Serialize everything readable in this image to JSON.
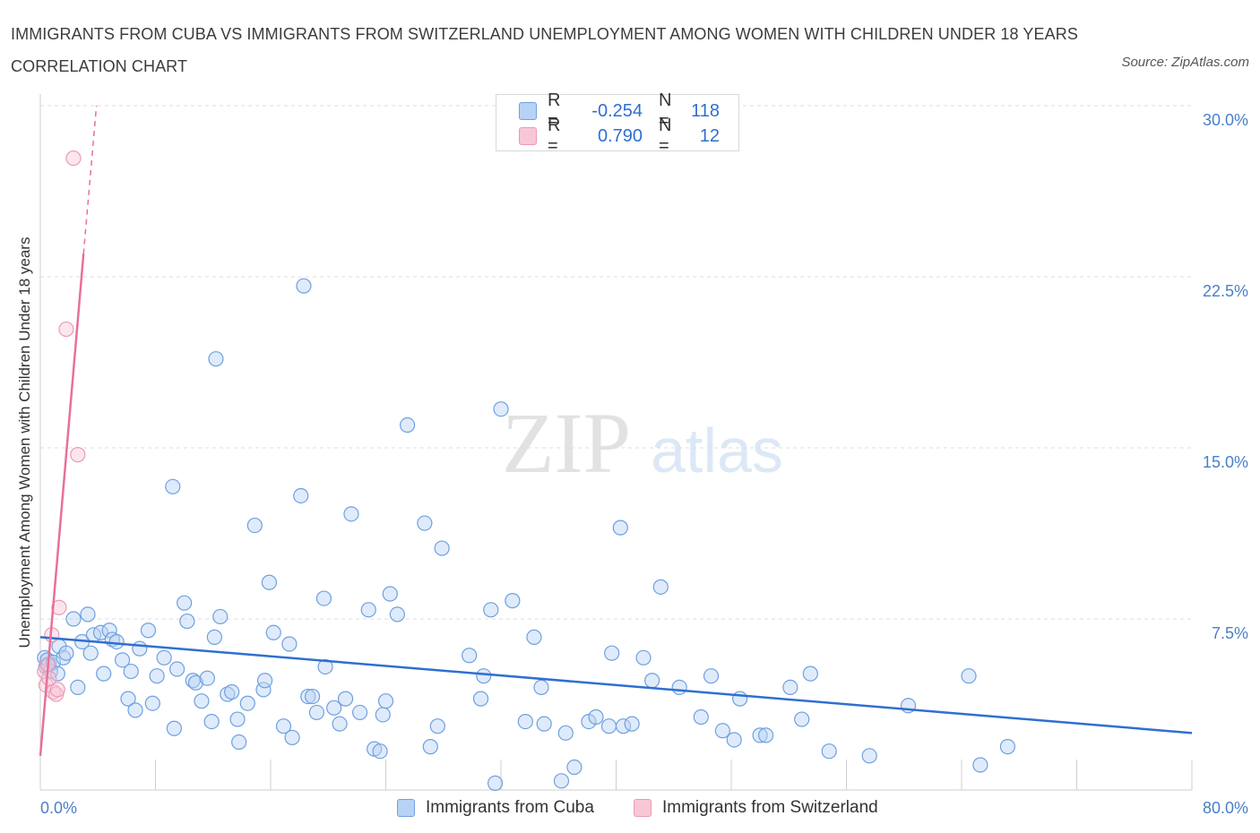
{
  "title": "IMMIGRANTS FROM CUBA VS IMMIGRANTS FROM SWITZERLAND UNEMPLOYMENT AMONG WOMEN WITH CHILDREN UNDER 18 YEARS CORRELATION CHART",
  "source": "Source: ZipAtlas.com",
  "watermark": {
    "zip": "ZIP",
    "atlas": "atlas"
  },
  "legend": {
    "rows": [
      {
        "r_label": "R =",
        "r_value": "-0.254",
        "n_label": "N =",
        "n_value": "118"
      },
      {
        "r_label": "R =",
        "r_value": "0.790",
        "n_label": "N =",
        "n_value": "12"
      }
    ]
  },
  "colors": {
    "cuba_fill": "#b8d2f5",
    "cuba_stroke": "#6fa0e0",
    "cuba_line": "#2f6fd0",
    "swiss_fill": "#f8c7d6",
    "swiss_stroke": "#ec9ab4",
    "swiss_line": "#e8709a",
    "grid": "#dddddd",
    "tick_text": "#4a7fc9"
  },
  "chart_data": {
    "type": "scatter",
    "title": "IMMIGRANTS FROM CUBA VS IMMIGRANTS FROM SWITZERLAND UNEMPLOYMENT AMONG WOMEN WITH CHILDREN UNDER 18 YEARS CORRELATION CHART",
    "xlabel": "",
    "ylabel": "Unemployment Among Women with Children Under 18 years",
    "xlim": [
      0,
      80
    ],
    "ylim": [
      0,
      30
    ],
    "x_tick_labels": [
      "0.0%",
      "80.0%"
    ],
    "y_ticks": [
      7.5,
      15.0,
      22.5,
      30.0
    ],
    "y_tick_labels": [
      "7.5%",
      "15.0%",
      "22.5%",
      "30.0%"
    ],
    "grid": "horizontal dashed",
    "legend_position": "top-center",
    "series": [
      {
        "name": "Immigrants from Cuba",
        "r": -0.254,
        "n": 118,
        "trend": [
          [
            0,
            6.7
          ],
          [
            80,
            2.5
          ]
        ],
        "points": [
          [
            0.3,
            5.8
          ],
          [
            0.4,
            5.4
          ],
          [
            0.5,
            5.7
          ],
          [
            0.6,
            5.5
          ],
          [
            0.7,
            5.2
          ],
          [
            0.9,
            5.6
          ],
          [
            1.2,
            5.1
          ],
          [
            1.3,
            6.3
          ],
          [
            1.6,
            5.8
          ],
          [
            1.8,
            6.0
          ],
          [
            2.3,
            7.5
          ],
          [
            2.6,
            4.5
          ],
          [
            2.9,
            6.5
          ],
          [
            3.3,
            7.7
          ],
          [
            3.5,
            6.0
          ],
          [
            3.7,
            6.8
          ],
          [
            4.2,
            6.9
          ],
          [
            4.4,
            5.1
          ],
          [
            4.8,
            7.0
          ],
          [
            5.0,
            6.6
          ],
          [
            5.3,
            6.5
          ],
          [
            5.7,
            5.7
          ],
          [
            6.1,
            4.0
          ],
          [
            6.3,
            5.2
          ],
          [
            6.6,
            3.5
          ],
          [
            6.9,
            6.2
          ],
          [
            7.5,
            7.0
          ],
          [
            7.8,
            3.8
          ],
          [
            8.1,
            5.0
          ],
          [
            8.6,
            5.8
          ],
          [
            9.2,
            13.3
          ],
          [
            9.3,
            2.7
          ],
          [
            9.5,
            5.3
          ],
          [
            10.0,
            8.2
          ],
          [
            10.2,
            7.4
          ],
          [
            10.6,
            4.8
          ],
          [
            10.8,
            4.7
          ],
          [
            11.2,
            3.9
          ],
          [
            11.6,
            4.9
          ],
          [
            11.9,
            3.0
          ],
          [
            12.1,
            6.7
          ],
          [
            12.2,
            18.9
          ],
          [
            12.5,
            7.6
          ],
          [
            13.0,
            4.2
          ],
          [
            13.3,
            4.3
          ],
          [
            13.7,
            3.1
          ],
          [
            13.8,
            2.1
          ],
          [
            14.4,
            3.8
          ],
          [
            14.9,
            11.6
          ],
          [
            15.5,
            4.4
          ],
          [
            15.6,
            4.8
          ],
          [
            15.9,
            9.1
          ],
          [
            16.2,
            6.9
          ],
          [
            16.9,
            2.8
          ],
          [
            17.3,
            6.4
          ],
          [
            17.5,
            2.3
          ],
          [
            18.1,
            12.9
          ],
          [
            18.3,
            22.1
          ],
          [
            18.6,
            4.1
          ],
          [
            18.9,
            4.1
          ],
          [
            19.2,
            3.4
          ],
          [
            19.7,
            8.4
          ],
          [
            19.8,
            5.4
          ],
          [
            20.4,
            3.6
          ],
          [
            20.8,
            2.9
          ],
          [
            21.2,
            4.0
          ],
          [
            21.6,
            12.1
          ],
          [
            22.2,
            3.4
          ],
          [
            22.8,
            7.9
          ],
          [
            23.2,
            1.8
          ],
          [
            23.6,
            1.7
          ],
          [
            23.8,
            3.3
          ],
          [
            24.0,
            3.9
          ],
          [
            24.3,
            8.6
          ],
          [
            24.8,
            7.7
          ],
          [
            25.5,
            16.0
          ],
          [
            26.7,
            11.7
          ],
          [
            27.1,
            1.9
          ],
          [
            27.6,
            2.8
          ],
          [
            27.9,
            10.6
          ],
          [
            29.8,
            5.9
          ],
          [
            30.6,
            4.0
          ],
          [
            30.8,
            5.0
          ],
          [
            31.3,
            7.9
          ],
          [
            31.6,
            0.3
          ],
          [
            32.0,
            16.7
          ],
          [
            32.8,
            8.3
          ],
          [
            33.7,
            3.0
          ],
          [
            34.3,
            6.7
          ],
          [
            34.8,
            4.5
          ],
          [
            35.0,
            2.9
          ],
          [
            36.2,
            0.4
          ],
          [
            36.5,
            2.5
          ],
          [
            37.1,
            1.0
          ],
          [
            38.1,
            3.0
          ],
          [
            38.6,
            3.2
          ],
          [
            39.5,
            2.8
          ],
          [
            39.7,
            6.0
          ],
          [
            40.3,
            11.5
          ],
          [
            40.5,
            2.8
          ],
          [
            41.1,
            2.9
          ],
          [
            41.9,
            5.8
          ],
          [
            42.5,
            4.8
          ],
          [
            43.1,
            8.9
          ],
          [
            44.4,
            4.5
          ],
          [
            45.9,
            3.2
          ],
          [
            46.6,
            5.0
          ],
          [
            47.4,
            2.6
          ],
          [
            48.2,
            2.2
          ],
          [
            48.6,
            4.0
          ],
          [
            50.0,
            2.4
          ],
          [
            50.4,
            2.4
          ],
          [
            52.1,
            4.5
          ],
          [
            52.9,
            3.1
          ],
          [
            53.5,
            5.1
          ],
          [
            54.8,
            1.7
          ],
          [
            57.6,
            1.5
          ],
          [
            60.3,
            3.7
          ],
          [
            64.5,
            5.0
          ],
          [
            65.3,
            1.1
          ],
          [
            67.2,
            1.9
          ]
        ]
      },
      {
        "name": "Immigrants from Switzerland",
        "r": 0.79,
        "n": 12,
        "trend": [
          [
            0,
            1.5
          ],
          [
            3.0,
            23.5
          ]
        ],
        "trend_dashed": [
          [
            3.0,
            23.5
          ],
          [
            3.9,
            30.0
          ]
        ],
        "points": [
          [
            0.3,
            5.2
          ],
          [
            0.4,
            4.6
          ],
          [
            0.5,
            5.5
          ],
          [
            0.6,
            4.9
          ],
          [
            0.8,
            6.8
          ],
          [
            0.9,
            4.3
          ],
          [
            1.1,
            4.2
          ],
          [
            1.2,
            4.4
          ],
          [
            1.3,
            8.0
          ],
          [
            1.8,
            20.2
          ],
          [
            2.3,
            27.7
          ],
          [
            2.6,
            14.7
          ]
        ]
      }
    ]
  },
  "axis": {
    "ylabel": "Unemployment Among Women with Children Under 18 years",
    "x_min_label": "0.0%",
    "x_max_label": "80.0%"
  },
  "bottom_legend": {
    "cuba": "Immigrants from Cuba",
    "swiss": "Immigrants from Switzerland"
  }
}
